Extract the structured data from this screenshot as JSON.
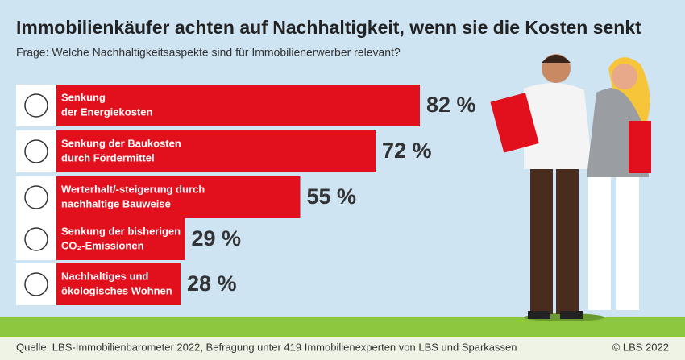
{
  "chart_data": {
    "type": "bar",
    "title": "Immobilienkäufer achten auf Nachhaltigkeit, wenn sie die Kosten senkt",
    "subtitle": "Frage: Welche Nachhaltigkeitsaspekte sind für Immobilienerwerber relevant?",
    "categories": [
      [
        "Senkung",
        "der Energiekosten"
      ],
      [
        "Senkung der Baukosten",
        "durch Fördermittel"
      ],
      [
        "Werterhalt/-steigerung durch",
        "nachhaltige Bauweise"
      ],
      [
        "Senkung der bisherigen",
        "CO₂-Emissionen"
      ],
      [
        "Nachhaltiges und",
        "ökologisches Wohnen"
      ]
    ],
    "values": [
      82,
      72,
      55,
      29,
      28
    ],
    "value_labels": [
      "82 %",
      "72 %",
      "55 %",
      "29 %",
      "28 %"
    ],
    "color": "#e2101c",
    "source": "Quelle: LBS-Immobilienbarometer 2022, Befragung unter 419 Immobilienexperten von LBS und Sparkassen",
    "copyright": "© LBS 2022"
  }
}
